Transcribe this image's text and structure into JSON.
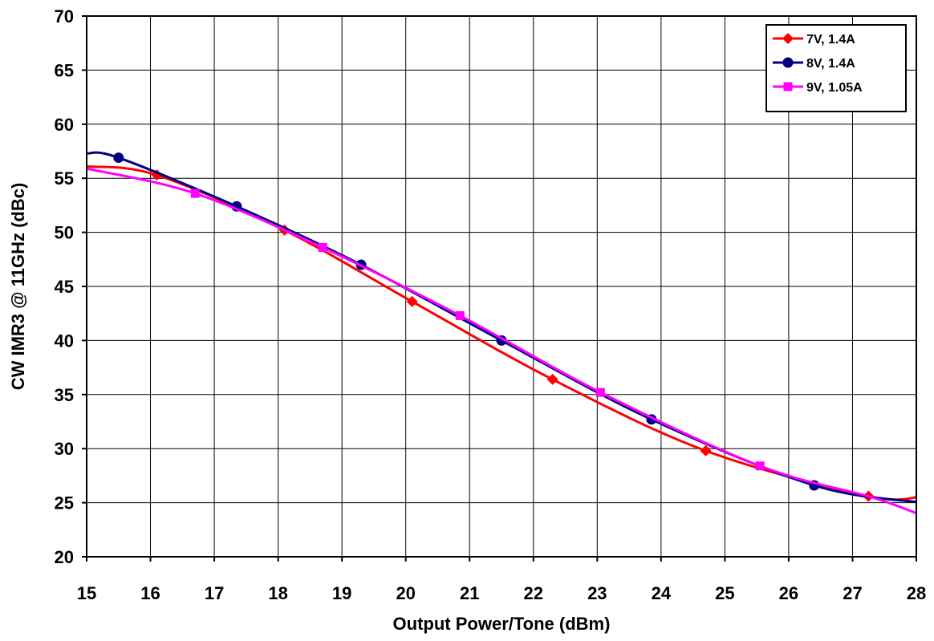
{
  "chart_data": {
    "type": "line",
    "xlabel": "Output Power/Tone (dBm)",
    "ylabel": "CW IMR3 @ 11GHz (dBc)",
    "xlim": [
      15,
      28
    ],
    "ylim": [
      20,
      70
    ],
    "x_ticks": [
      "15",
      "16",
      "17",
      "18",
      "19",
      "20",
      "21",
      "22",
      "23",
      "24",
      "25",
      "26",
      "27",
      "28"
    ],
    "y_ticks": [
      "20",
      "25",
      "30",
      "35",
      "40",
      "45",
      "50",
      "55",
      "60",
      "65",
      "70"
    ],
    "grid": true,
    "legend_position": "top-right",
    "series": [
      {
        "name": "7V, 1.4A",
        "color": "#ff0000",
        "marker": "diamond",
        "points": [
          [
            15,
            56.1
          ],
          [
            16.1,
            55.3
          ],
          [
            18.1,
            50.2
          ],
          [
            20.1,
            43.6
          ],
          [
            22.3,
            36.4
          ],
          [
            24.7,
            29.8
          ],
          [
            27.25,
            25.6
          ],
          [
            28.1,
            25.6
          ]
        ],
        "marker_x": [
          16.1,
          18.1,
          20.1,
          22.3,
          24.7,
          27.25
        ]
      },
      {
        "name": "8V, 1.4A",
        "color": "#000080",
        "marker": "circle",
        "points": [
          [
            15,
            57.3
          ],
          [
            15.5,
            56.9
          ],
          [
            17.35,
            52.4
          ],
          [
            19.3,
            47.0
          ],
          [
            21.5,
            40.0
          ],
          [
            23.85,
            32.7
          ],
          [
            26.4,
            26.6
          ],
          [
            28.1,
            25.0
          ]
        ],
        "marker_x": [
          15.5,
          17.35,
          19.3,
          21.5,
          23.85,
          26.4
        ]
      },
      {
        "name": "9V, 1.05A",
        "color": "#ff00ff",
        "marker": "square",
        "points": [
          [
            15,
            55.9
          ],
          [
            16.7,
            53.6
          ],
          [
            18.7,
            48.6
          ],
          [
            20.85,
            42.3
          ],
          [
            23.05,
            35.2
          ],
          [
            25.55,
            28.4
          ],
          [
            27.3,
            25.5
          ],
          [
            28.1,
            23.8
          ]
        ],
        "marker_x": [
          16.7,
          18.7,
          20.85,
          23.05,
          25.55
        ]
      }
    ]
  }
}
